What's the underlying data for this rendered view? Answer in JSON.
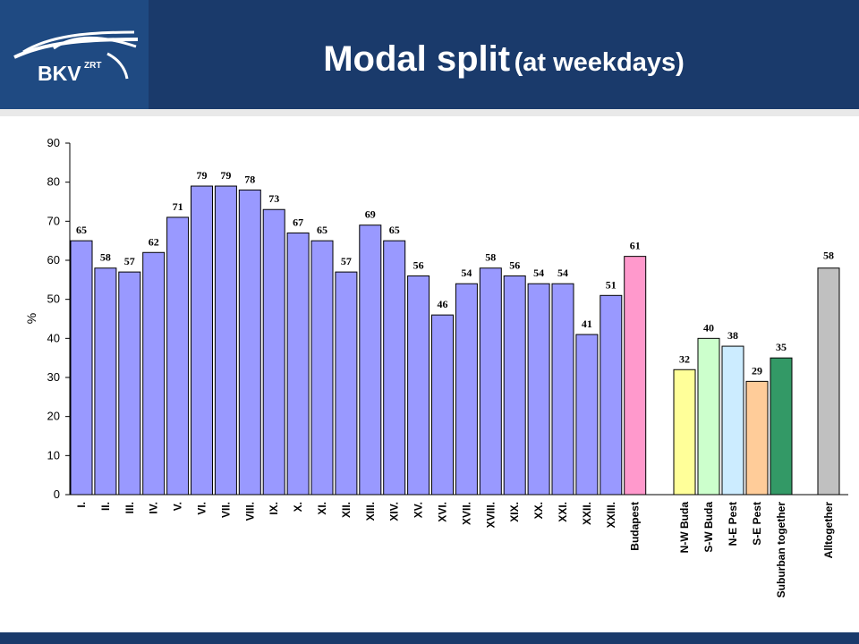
{
  "header": {
    "logo_text": "BKV",
    "logo_sub": "ZRT",
    "title_main": "Modal split",
    "title_sub": "(at weekdays)"
  },
  "colors": {
    "header_bg": "#1a3a6b",
    "logo_bg": "#1f4a82",
    "plot_bg": "#ffffff"
  },
  "chart_data": {
    "type": "bar",
    "title": "Modal split (at weekdays)",
    "xlabel": "",
    "ylabel": "%",
    "ylim": [
      0,
      90
    ],
    "yticks": [
      0,
      10,
      20,
      30,
      40,
      50,
      60,
      70,
      80,
      90
    ],
    "grid": false,
    "legend": "none",
    "categories": [
      "I.",
      "II.",
      "III.",
      "IV.",
      "V.",
      "VI.",
      "VII.",
      "VIII.",
      "IX.",
      "X.",
      "XI.",
      "XII.",
      "XIII.",
      "XIV.",
      "XV.",
      "XVI.",
      "XVII.",
      "XVIII.",
      "XIX.",
      "XX.",
      "XXI.",
      "XXII.",
      "XXIII.",
      "Budapest",
      "N-W Buda",
      "S-W Buda",
      "N-E Pest",
      "S-E Pest",
      "Suburban together",
      "Alltogether"
    ],
    "values": [
      65,
      58,
      57,
      62,
      71,
      79,
      79,
      78,
      73,
      67,
      65,
      57,
      69,
      65,
      56,
      46,
      54,
      58,
      56,
      54,
      54,
      41,
      51,
      61,
      32,
      40,
      38,
      29,
      35,
      58
    ],
    "groups": [
      {
        "categories": [
          "I.",
          "II.",
          "III.",
          "IV.",
          "V.",
          "VI.",
          "VII.",
          "VIII.",
          "IX.",
          "X.",
          "XI.",
          "XII.",
          "XIII.",
          "XIV.",
          "XV.",
          "XVI.",
          "XVII.",
          "XVIII.",
          "XIX.",
          "XX.",
          "XXI.",
          "XXII.",
          "XXIII."
        ],
        "color": "#9999ff"
      },
      {
        "categories": [
          "Budapest"
        ],
        "color": "#ff99cc"
      },
      {
        "categories": [
          "N-W Buda"
        ],
        "color": "#ffff99"
      },
      {
        "categories": [
          "S-W Buda"
        ],
        "color": "#ccffcc"
      },
      {
        "categories": [
          "N-E Pest"
        ],
        "color": "#ccecff"
      },
      {
        "categories": [
          "S-E Pest"
        ],
        "color": "#ffcc99"
      },
      {
        "categories": [
          "Suburban together"
        ],
        "color": "#339966"
      },
      {
        "categories": [
          "Alltogether"
        ],
        "color": "#c0c0c0"
      }
    ]
  }
}
